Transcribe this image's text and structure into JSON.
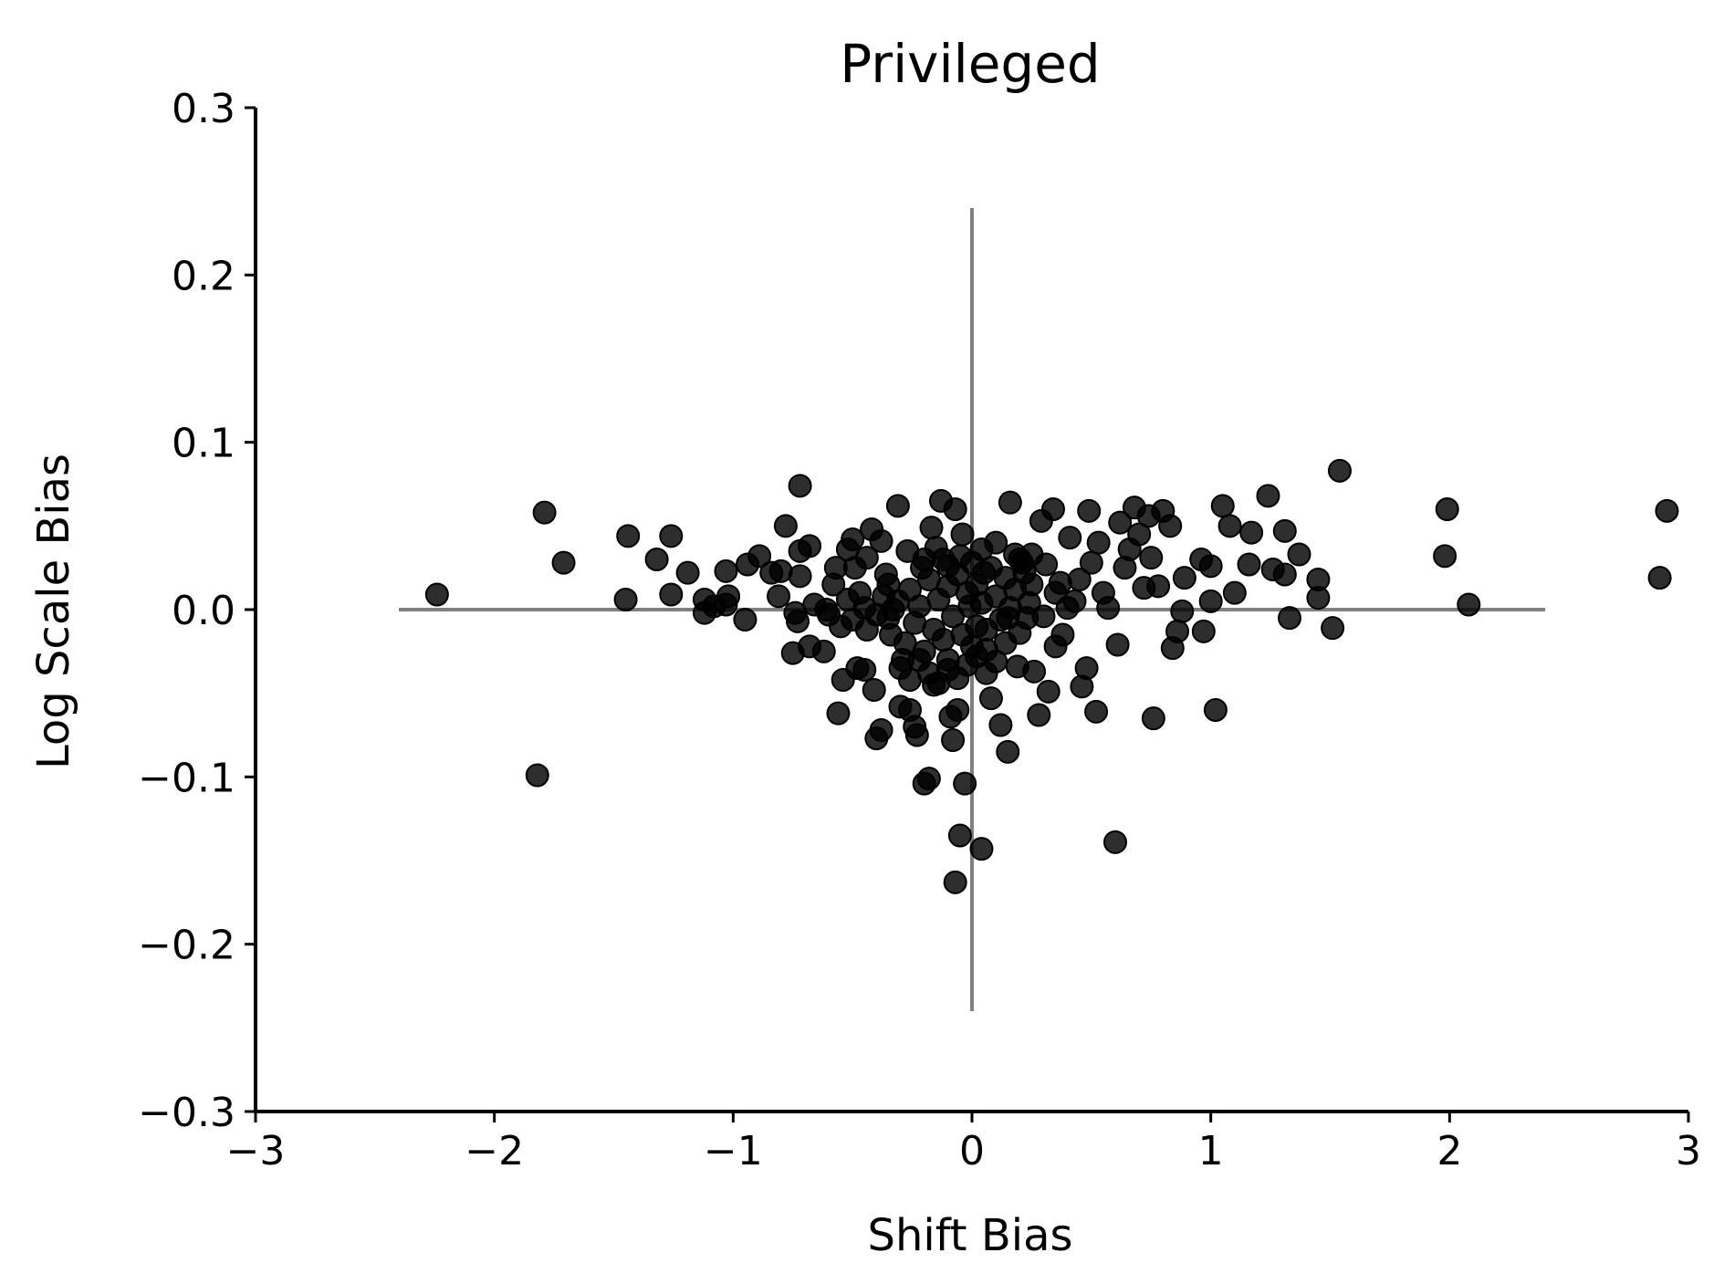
{
  "chart_data": {
    "type": "scatter",
    "title": "Privileged",
    "xlabel": "Shift Bias",
    "ylabel": "Log Scale Bias",
    "xlim": [
      -3,
      3
    ],
    "ylim": [
      -0.3,
      0.3
    ],
    "xticks": [
      -3,
      -2,
      -1,
      0,
      1,
      2,
      3
    ],
    "yticks": [
      -0.3,
      -0.2,
      -0.1,
      0.0,
      0.1,
      0.2,
      0.3
    ],
    "xtick_labels": [
      "−3",
      "−2",
      "−1",
      "0",
      "1",
      "2",
      "3"
    ],
    "ytick_labels": [
      "−0.3",
      "−0.2",
      "−0.1",
      "0.0",
      "0.1",
      "0.2",
      "0.3"
    ],
    "reference_lines": {
      "horizontal": {
        "y": 0,
        "x_range": [
          -2.4,
          2.4
        ]
      },
      "vertical": {
        "x": 0,
        "y_range": [
          -0.24,
          0.24
        ]
      }
    },
    "grid": false,
    "colors": {
      "marker": "#000000",
      "reference_line": "#808080",
      "axis": "#000000"
    },
    "points": [
      [
        -2.24,
        0.009
      ],
      [
        -1.79,
        0.058
      ],
      [
        -1.71,
        0.028
      ],
      [
        -1.82,
        -0.099
      ],
      [
        -1.44,
        0.044
      ],
      [
        -1.45,
        0.006
      ],
      [
        -1.32,
        0.03
      ],
      [
        -1.26,
        0.044
      ],
      [
        -1.26,
        0.009
      ],
      [
        -1.19,
        0.022
      ],
      [
        -1.12,
        0.006
      ],
      [
        -1.12,
        -0.002
      ],
      [
        -1.08,
        0.002
      ],
      [
        -1.03,
        0.023
      ],
      [
        -1.02,
        0.008
      ],
      [
        -1.03,
        0.003
      ],
      [
        -0.95,
        -0.006
      ],
      [
        -0.94,
        0.027
      ],
      [
        -0.89,
        0.032
      ],
      [
        -0.84,
        0.022
      ],
      [
        -0.81,
        0.008
      ],
      [
        -0.8,
        0.023
      ],
      [
        -0.78,
        0.05
      ],
      [
        -0.72,
        0.074
      ],
      [
        -0.72,
        0.035
      ],
      [
        -0.72,
        0.02
      ],
      [
        -0.68,
        0.038
      ],
      [
        -0.74,
        -0.002
      ],
      [
        -0.73,
        -0.007
      ],
      [
        -0.75,
        -0.026
      ],
      [
        -0.68,
        -0.022
      ],
      [
        -0.66,
        0.003
      ],
      [
        -0.62,
        -0.025
      ],
      [
        -0.61,
        0.0
      ],
      [
        -0.58,
        0.015
      ],
      [
        -0.57,
        0.025
      ],
      [
        -0.56,
        -0.062
      ],
      [
        -0.54,
        -0.042
      ],
      [
        -0.52,
        0.036
      ],
      [
        -0.5,
        0.042
      ],
      [
        -0.49,
        0.025
      ],
      [
        -0.48,
        -0.035
      ],
      [
        -0.45,
        -0.036
      ],
      [
        -0.44,
        0.031
      ],
      [
        -0.42,
        0.048
      ],
      [
        -0.41,
        -0.048
      ],
      [
        -0.4,
        -0.077
      ],
      [
        -0.38,
        0.041
      ],
      [
        -0.38,
        -0.072
      ],
      [
        -0.36,
        0.021
      ],
      [
        -0.35,
        -0.005
      ],
      [
        -0.33,
        0.0
      ],
      [
        -0.31,
        0.062
      ],
      [
        -0.3,
        -0.058
      ],
      [
        -0.29,
        -0.03
      ],
      [
        -0.27,
        0.035
      ],
      [
        -0.26,
        -0.06
      ],
      [
        -0.24,
        -0.07
      ],
      [
        -0.23,
        -0.075
      ],
      [
        -0.21,
        0.025
      ],
      [
        -0.2,
        -0.104
      ],
      [
        -0.18,
        -0.101
      ],
      [
        -0.17,
        0.049
      ],
      [
        -0.16,
        -0.045
      ],
      [
        -0.13,
        0.065
      ],
      [
        -0.12,
        0.03
      ],
      [
        -0.1,
        -0.03
      ],
      [
        -0.09,
        -0.064
      ],
      [
        -0.08,
        -0.078
      ],
      [
        -0.07,
        -0.163
      ],
      [
        -0.07,
        0.06
      ],
      [
        -0.06,
        -0.06
      ],
      [
        -0.05,
        -0.135
      ],
      [
        -0.04,
        0.045
      ],
      [
        -0.03,
        -0.104
      ],
      [
        -0.01,
        0.002
      ],
      [
        0.02,
        -0.01
      ],
      [
        0.04,
        -0.143
      ],
      [
        0.04,
        0.036
      ],
      [
        0.06,
        -0.038
      ],
      [
        0.08,
        -0.053
      ],
      [
        0.1,
        0.04
      ],
      [
        0.12,
        -0.069
      ],
      [
        0.14,
        -0.02
      ],
      [
        0.15,
        -0.085
      ],
      [
        0.16,
        0.064
      ],
      [
        0.18,
        0.033
      ],
      [
        0.19,
        -0.034
      ],
      [
        0.21,
        0.028
      ],
      [
        0.23,
        -0.005
      ],
      [
        0.25,
        0.033
      ],
      [
        0.26,
        -0.037
      ],
      [
        0.28,
        -0.063
      ],
      [
        0.29,
        0.053
      ],
      [
        0.31,
        0.027
      ],
      [
        0.32,
        -0.049
      ],
      [
        0.34,
        0.06
      ],
      [
        0.35,
        -0.022
      ],
      [
        0.37,
        0.016
      ],
      [
        0.38,
        -0.015
      ],
      [
        0.41,
        0.043
      ],
      [
        0.43,
        0.005
      ],
      [
        0.45,
        0.018
      ],
      [
        0.46,
        -0.046
      ],
      [
        0.48,
        -0.035
      ],
      [
        0.49,
        0.059
      ],
      [
        0.5,
        0.028
      ],
      [
        0.52,
        -0.061
      ],
      [
        0.53,
        0.04
      ],
      [
        0.55,
        0.01
      ],
      [
        0.57,
        0.001
      ],
      [
        0.6,
        -0.139
      ],
      [
        0.61,
        -0.021
      ],
      [
        0.62,
        0.052
      ],
      [
        0.64,
        0.025
      ],
      [
        0.66,
        0.036
      ],
      [
        0.68,
        0.061
      ],
      [
        0.7,
        0.045
      ],
      [
        0.72,
        0.013
      ],
      [
        0.74,
        0.056
      ],
      [
        0.75,
        0.031
      ],
      [
        0.76,
        -0.065
      ],
      [
        0.78,
        0.014
      ],
      [
        0.8,
        0.059
      ],
      [
        0.83,
        0.05
      ],
      [
        0.84,
        -0.023
      ],
      [
        0.86,
        -0.013
      ],
      [
        0.88,
        -0.001
      ],
      [
        0.89,
        0.019
      ],
      [
        0.96,
        0.03
      ],
      [
        0.97,
        -0.013
      ],
      [
        1.0,
        0.026
      ],
      [
        1.0,
        0.005
      ],
      [
        1.02,
        -0.06
      ],
      [
        1.05,
        0.062
      ],
      [
        1.08,
        0.05
      ],
      [
        1.1,
        0.01
      ],
      [
        1.16,
        0.027
      ],
      [
        1.17,
        0.046
      ],
      [
        1.24,
        0.068
      ],
      [
        1.26,
        0.024
      ],
      [
        1.31,
        0.047
      ],
      [
        1.31,
        0.021
      ],
      [
        1.33,
        -0.005
      ],
      [
        1.37,
        0.033
      ],
      [
        1.45,
        0.018
      ],
      [
        1.45,
        0.007
      ],
      [
        1.51,
        -0.011
      ],
      [
        1.54,
        0.083
      ],
      [
        1.99,
        0.06
      ],
      [
        1.98,
        0.032
      ],
      [
        2.08,
        0.003
      ],
      [
        2.88,
        0.019
      ],
      [
        2.91,
        0.059
      ],
      [
        -0.6,
        -0.003
      ],
      [
        -0.55,
        -0.01
      ],
      [
        -0.5,
        -0.006
      ],
      [
        -0.47,
        0.01
      ],
      [
        -0.44,
        -0.012
      ],
      [
        -0.4,
        -0.003
      ],
      [
        -0.37,
        0.008
      ],
      [
        -0.34,
        -0.015
      ],
      [
        -0.31,
        0.005
      ],
      [
        -0.28,
        -0.02
      ],
      [
        -0.26,
        0.012
      ],
      [
        -0.24,
        -0.008
      ],
      [
        -0.22,
        0.002
      ],
      [
        -0.2,
        -0.025
      ],
      [
        -0.18,
        0.018
      ],
      [
        -0.16,
        -0.012
      ],
      [
        -0.14,
        0.006
      ],
      [
        -0.12,
        -0.018
      ],
      [
        -0.1,
        0.014
      ],
      [
        -0.08,
        -0.004
      ],
      [
        -0.06,
        0.021
      ],
      [
        -0.04,
        -0.015
      ],
      [
        -0.02,
        0.01
      ],
      [
        0.0,
        -0.022
      ],
      [
        0.02,
        0.015
      ],
      [
        0.04,
        0.004
      ],
      [
        0.06,
        -0.012
      ],
      [
        0.08,
        0.025
      ],
      [
        0.1,
        0.008
      ],
      [
        0.12,
        -0.006
      ],
      [
        0.14,
        0.019
      ],
      [
        0.16,
        0.001
      ],
      [
        0.18,
        0.012
      ],
      [
        0.2,
        -0.014
      ],
      [
        0.22,
        0.022
      ],
      [
        0.24,
        0.004
      ],
      [
        -0.3,
        -0.035
      ],
      [
        -0.26,
        -0.042
      ],
      [
        -0.22,
        -0.03
      ],
      [
        -0.18,
        -0.038
      ],
      [
        -0.14,
        -0.044
      ],
      [
        -0.1,
        -0.036
      ],
      [
        -0.06,
        -0.041
      ],
      [
        -0.02,
        -0.033
      ],
      [
        0.02,
        -0.028
      ],
      [
        0.06,
        -0.024
      ],
      [
        0.1,
        -0.031
      ],
      [
        -0.2,
        0.03
      ],
      [
        -0.15,
        0.037
      ],
      [
        -0.1,
        0.026
      ],
      [
        -0.05,
        0.032
      ],
      [
        0.0,
        0.028
      ],
      [
        0.05,
        0.022
      ],
      [
        0.2,
        0.03
      ],
      [
        0.25,
        0.015
      ],
      [
        0.3,
        -0.004
      ],
      [
        0.35,
        0.01
      ],
      [
        0.4,
        0.001
      ],
      [
        0.15,
        -0.005
      ],
      [
        -0.35,
        0.015
      ],
      [
        -0.45,
        0.001
      ],
      [
        -0.52,
        0.006
      ]
    ]
  }
}
